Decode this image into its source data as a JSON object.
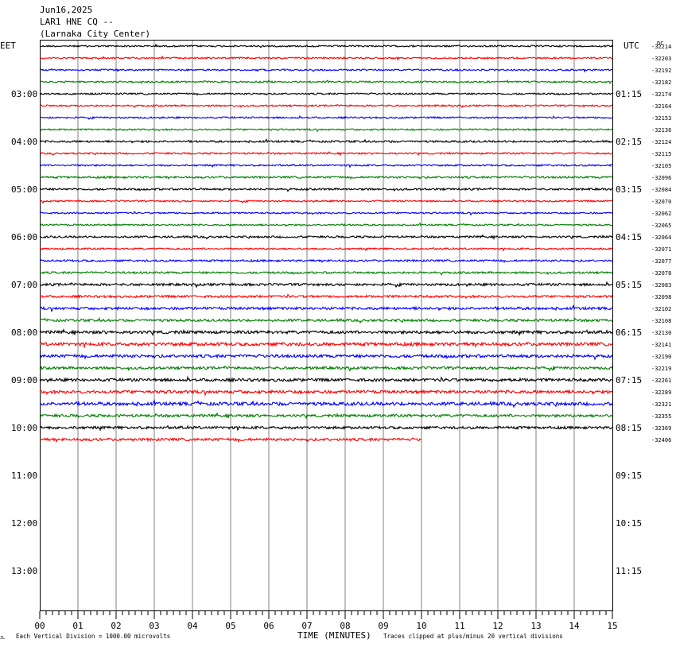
{
  "header": {
    "date": "Jun16,2025",
    "station": "LAR1 HNE CQ --",
    "location": "(Larnaka City Center)"
  },
  "left_tz": "EET",
  "right_tz": "UTC",
  "dc_label": "DC",
  "footer": {
    "scale_note": "Each Vertical Division = 1000.00 microvolts",
    "xlabel": "TIME (MINUTES)",
    "clip_note": "Traces clipped at plus/minus 20 vertical divisions",
    "corner_mark": "JL"
  },
  "colors": {
    "grid": "#808080",
    "trace_cycle": [
      "#000000",
      "#ff0000",
      "#0000ff",
      "#008000"
    ]
  },
  "chart_data": {
    "type": "helicorder",
    "xlabel": "TIME (MINUTES)",
    "x_ticks": [
      "00",
      "01",
      "02",
      "03",
      "04",
      "05",
      "06",
      "07",
      "08",
      "09",
      "10",
      "11",
      "12",
      "13",
      "14",
      "15"
    ],
    "xlim": [
      0,
      15
    ],
    "minutes_per_line": 15,
    "total_lines": 48,
    "left_hour_labels": [
      "03:00",
      "04:00",
      "05:00",
      "06:00",
      "07:00",
      "08:00",
      "09:00",
      "10:00",
      "11:00",
      "12:00",
      "13:00"
    ],
    "right_hour_labels": [
      "01:15",
      "02:15",
      "03:15",
      "04:15",
      "05:15",
      "06:15",
      "07:15",
      "08:15",
      "09:15",
      "10:15",
      "11:15"
    ],
    "hour_label_first_line": 4,
    "traces": [
      {
        "dc": "-32214",
        "end_minute": 15,
        "noise": 1.0
      },
      {
        "dc": "-32203",
        "end_minute": 15,
        "noise": 1.0
      },
      {
        "dc": "-32192",
        "end_minute": 15,
        "noise": 1.0
      },
      {
        "dc": "-32182",
        "end_minute": 15,
        "noise": 1.0
      },
      {
        "dc": "-32174",
        "end_minute": 15,
        "noise": 1.0
      },
      {
        "dc": "-32164",
        "end_minute": 15,
        "noise": 1.0
      },
      {
        "dc": "-32153",
        "end_minute": 15,
        "noise": 1.0
      },
      {
        "dc": "-32136",
        "end_minute": 15,
        "noise": 1.0
      },
      {
        "dc": "-32124",
        "end_minute": 15,
        "noise": 1.2
      },
      {
        "dc": "-32115",
        "end_minute": 15,
        "noise": 1.0
      },
      {
        "dc": "-32105",
        "end_minute": 15,
        "noise": 1.0
      },
      {
        "dc": "-32096",
        "end_minute": 15,
        "noise": 1.2
      },
      {
        "dc": "-32084",
        "end_minute": 15,
        "noise": 1.2
      },
      {
        "dc": "-32070",
        "end_minute": 15,
        "noise": 1.0
      },
      {
        "dc": "-32062",
        "end_minute": 15,
        "noise": 1.0
      },
      {
        "dc": "-32065",
        "end_minute": 15,
        "noise": 1.0
      },
      {
        "dc": "-32064",
        "end_minute": 15,
        "noise": 1.2
      },
      {
        "dc": "-32071",
        "end_minute": 15,
        "noise": 1.0
      },
      {
        "dc": "-32077",
        "end_minute": 15,
        "noise": 1.2
      },
      {
        "dc": "-32078",
        "end_minute": 15,
        "noise": 1.2
      },
      {
        "dc": "-32083",
        "end_minute": 15,
        "noise": 1.5
      },
      {
        "dc": "-32098",
        "end_minute": 15,
        "noise": 1.4
      },
      {
        "dc": "-32102",
        "end_minute": 15,
        "noise": 1.6
      },
      {
        "dc": "-32108",
        "end_minute": 15,
        "noise": 1.5
      },
      {
        "dc": "-32130",
        "end_minute": 15,
        "noise": 1.8
      },
      {
        "dc": "-32141",
        "end_minute": 15,
        "noise": 2.0
      },
      {
        "dc": "-32190",
        "end_minute": 15,
        "noise": 1.8
      },
      {
        "dc": "-32219",
        "end_minute": 15,
        "noise": 1.6
      },
      {
        "dc": "-32261",
        "end_minute": 15,
        "noise": 1.8
      },
      {
        "dc": "-32289",
        "end_minute": 15,
        "noise": 1.8
      },
      {
        "dc": "-32321",
        "end_minute": 15,
        "noise": 2.0
      },
      {
        "dc": "-32355",
        "end_minute": 15,
        "noise": 1.6
      },
      {
        "dc": "-32369",
        "end_minute": 15,
        "noise": 1.6
      },
      {
        "dc": "-32406",
        "end_minute": 10,
        "noise": 1.6
      }
    ]
  }
}
